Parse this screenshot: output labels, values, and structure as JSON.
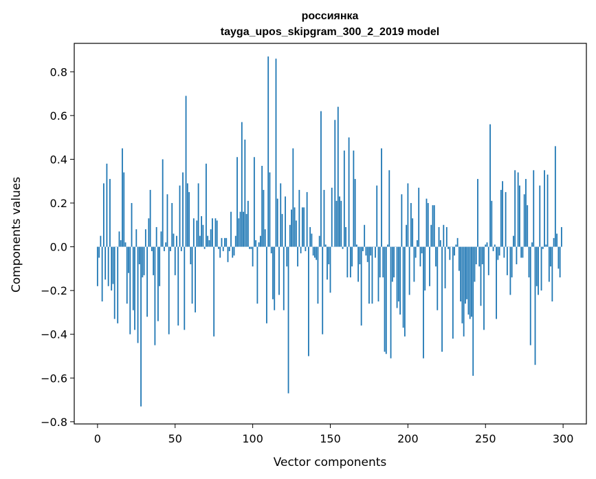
{
  "chart_data": {
    "type": "bar",
    "title_line1": "россиянка",
    "title_line2": "tayga_upos_skipgram_300_2_2019 model",
    "xlabel": "Vector components",
    "ylabel": "Components values",
    "xlim": [
      -15,
      315
    ],
    "ylim": [
      -0.81,
      0.93
    ],
    "xticks": [
      0,
      50,
      100,
      150,
      200,
      250,
      300
    ],
    "xtick_labels": [
      "0",
      "50",
      "100",
      "150",
      "200",
      "250",
      "300"
    ],
    "yticks": [
      -0.8,
      -0.6,
      -0.4,
      -0.2,
      0.0,
      0.2,
      0.4,
      0.6,
      0.8
    ],
    "ytick_labels": [
      "−0.8",
      "−0.6",
      "−0.4",
      "−0.2",
      "0.0",
      "0.2",
      "0.4",
      "0.6",
      "0.8"
    ],
    "bar_color": "#1f77b4",
    "values": [
      -0.18,
      -0.05,
      0.05,
      -0.25,
      0.29,
      -0.15,
      0.38,
      -0.18,
      0.31,
      -0.2,
      -0.17,
      -0.33,
      0.0,
      -0.35,
      0.07,
      0.03,
      0.45,
      0.34,
      0.02,
      -0.26,
      -0.12,
      -0.4,
      0.2,
      -0.29,
      -0.38,
      0.08,
      -0.44,
      -0.08,
      -0.73,
      -0.14,
      -0.13,
      0.08,
      -0.32,
      0.13,
      0.26,
      -0.02,
      -0.13,
      -0.45,
      0.09,
      -0.34,
      -0.18,
      0.07,
      0.4,
      -0.02,
      0.02,
      0.24,
      -0.4,
      -0.02,
      0.2,
      0.06,
      -0.13,
      0.05,
      -0.36,
      0.28,
      -0.02,
      0.34,
      -0.38,
      0.69,
      0.29,
      0.25,
      -0.08,
      -0.26,
      0.13,
      -0.3,
      0.12,
      0.29,
      0.05,
      0.14,
      0.1,
      -0.01,
      0.38,
      0.05,
      0.03,
      0.08,
      0.13,
      -0.41,
      0.13,
      0.12,
      -0.01,
      -0.05,
      0.04,
      -0.02,
      0.04,
      0.04,
      -0.07,
      -0.02,
      0.16,
      -0.05,
      -0.04,
      0.05,
      0.41,
      0.13,
      0.16,
      0.57,
      0.16,
      0.49,
      0.15,
      0.21,
      -0.01,
      -0.01,
      -0.09,
      0.41,
      0.03,
      -0.26,
      0.02,
      0.05,
      0.37,
      0.26,
      0.08,
      -0.35,
      0.87,
      0.34,
      -0.03,
      -0.24,
      -0.29,
      0.86,
      0.22,
      -0.22,
      0.29,
      0.15,
      -0.29,
      0.23,
      -0.09,
      -0.67,
      0.1,
      0.17,
      0.45,
      0.18,
      0.12,
      -0.09,
      0.26,
      -0.03,
      0.18,
      0.18,
      -0.02,
      0.25,
      -0.5,
      0.09,
      0.06,
      -0.04,
      -0.05,
      -0.06,
      -0.26,
      0.05,
      0.62,
      -0.4,
      0.26,
      0.01,
      -0.15,
      -0.08,
      -0.21,
      0.27,
      0.0,
      0.58,
      0.21,
      0.64,
      0.23,
      0.21,
      -0.01,
      0.44,
      0.09,
      -0.14,
      0.5,
      -0.14,
      -0.09,
      0.44,
      0.31,
      0.01,
      -0.16,
      -0.08,
      -0.36,
      -0.02,
      0.1,
      -0.04,
      -0.07,
      -0.26,
      -0.04,
      -0.26,
      0.0,
      -0.05,
      0.28,
      -0.25,
      -0.14,
      0.45,
      -0.14,
      -0.48,
      -0.49,
      0.01,
      0.35,
      -0.51,
      -0.16,
      -0.14,
      0.0,
      -0.28,
      -0.25,
      -0.31,
      0.24,
      -0.37,
      -0.41,
      0.1,
      0.29,
      -0.22,
      0.2,
      0.13,
      -0.16,
      -0.05,
      0.03,
      0.27,
      -0.09,
      -0.03,
      -0.51,
      -0.2,
      0.22,
      0.2,
      -0.18,
      0.1,
      0.19,
      0.19,
      -0.09,
      -0.29,
      0.09,
      0.03,
      -0.48,
      0.1,
      -0.19,
      0.09,
      -0.01,
      -0.06,
      0.0,
      -0.42,
      -0.04,
      0.01,
      0.04,
      -0.11,
      -0.25,
      -0.35,
      -0.41,
      -0.26,
      -0.24,
      -0.31,
      -0.33,
      -0.32,
      -0.59,
      -0.16,
      -0.08,
      0.31,
      -0.09,
      -0.27,
      -0.08,
      -0.38,
      0.01,
      0.02,
      -0.13,
      0.56,
      0.21,
      -0.02,
      0.01,
      -0.33,
      -0.06,
      -0.04,
      0.26,
      0.3,
      -0.05,
      0.25,
      -0.13,
      0.0,
      -0.22,
      -0.14,
      0.05,
      0.35,
      -0.08,
      0.34,
      0.28,
      -0.05,
      -0.05,
      0.24,
      0.31,
      0.19,
      -0.14,
      -0.45,
      0.02,
      0.35,
      -0.54,
      -0.18,
      -0.22,
      0.28,
      -0.2,
      -0.01,
      0.35,
      0.01,
      0.33,
      -0.16,
      -0.09,
      -0.25,
      0.04,
      0.46,
      0.06,
      -0.1,
      -0.14,
      0.09
    ]
  }
}
